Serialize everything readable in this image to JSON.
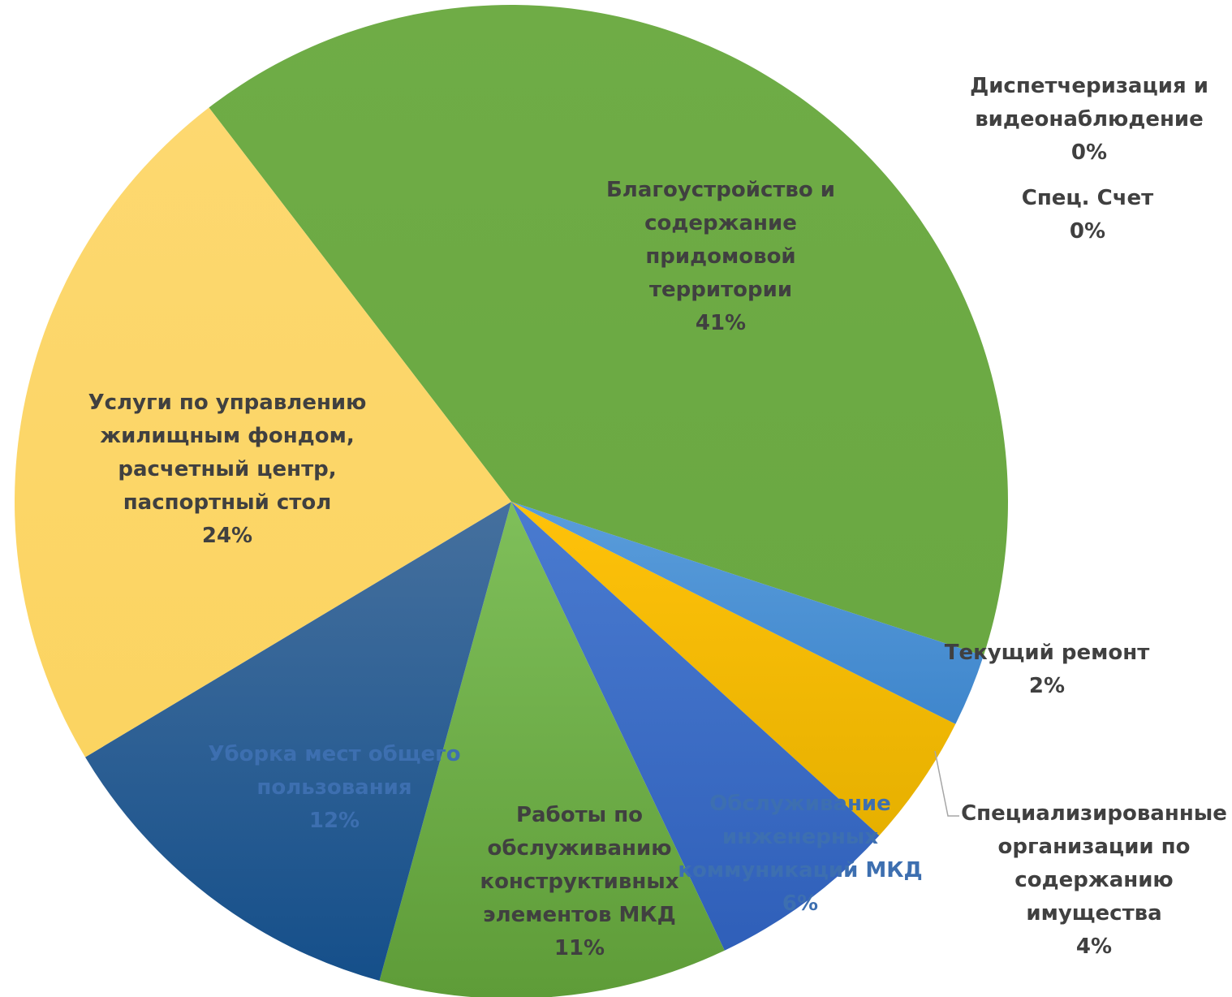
{
  "chart_data": {
    "type": "pie",
    "slices": [
      {
        "label_lines": [
          "Благоустройство и",
          "содержание",
          "придомовой",
          "территории"
        ],
        "percent_label": "41%",
        "value": 41,
        "color": "#70ad47"
      },
      {
        "label_lines": [
          "Диспетчеризация и",
          "видеонаблюдение"
        ],
        "percent_label": "0%",
        "value": 0,
        "color": "#4472c4"
      },
      {
        "label_lines": [
          "Спец. Счет"
        ],
        "percent_label": "0%",
        "value": 0,
        "color": "#a5a5a5"
      },
      {
        "label_lines": [
          "Текущий ремонт"
        ],
        "percent_label": "2%",
        "value": 2.4,
        "color": "#5b9bd5"
      },
      {
        "label_lines": [
          "Специализированные",
          "организации по",
          "содержанию",
          "имущества"
        ],
        "percent_label": "4%",
        "value": 4.4,
        "color": "#ffc000"
      },
      {
        "label_lines": [
          "Обслуживание",
          "инженерных",
          "коммуникаций МКД"
        ],
        "percent_label": "6%",
        "value": 6.3,
        "color": "#4472c4"
      },
      {
        "label_lines": [
          "Работы по",
          "обслуживанию",
          "конструктивных",
          "элементов МКД"
        ],
        "percent_label": "11%",
        "value": 11.5,
        "color": "#70ad47"
      },
      {
        "label_lines": [
          "Уборка мест общего",
          "пользования"
        ],
        "percent_label": "12%",
        "value": 12.3,
        "color": "#255e91"
      },
      {
        "label_lines": [
          "Услуги по управлению",
          "жилищным фондом,",
          "расчетный центр,",
          "паспортный стол"
        ],
        "percent_label": "24%",
        "value": 23.5,
        "color": "#ffd966"
      }
    ],
    "start_angle_deg": -37.5,
    "direction": "clockwise",
    "legend": "none"
  }
}
